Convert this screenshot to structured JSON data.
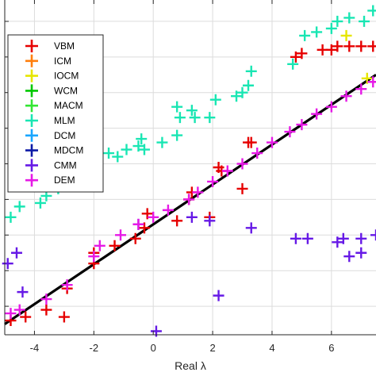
{
  "chart_data": {
    "type": "scatter",
    "title": "",
    "xlabel": "Real λ",
    "ylabel": "",
    "xlim": [
      -5,
      7.5
    ],
    "ylim": [
      -2.8,
      6.6
    ],
    "grid": true,
    "legend_position": "top-left",
    "x_ticks": [
      -4,
      -2,
      0,
      2,
      4,
      6
    ],
    "x_tick_labels": [
      "-4",
      "-2",
      "0",
      "2",
      "4",
      "6"
    ],
    "y_ticks": [
      -2,
      -1,
      0,
      1,
      2,
      3,
      4,
      5,
      6
    ],
    "identity_line": {
      "x": [
        -5,
        7.5
      ],
      "y": [
        -2.5,
        4.5
      ]
    },
    "series": [
      {
        "name": "VBM",
        "color": "#e60000",
        "points": [
          [
            -4.8,
            -2.4
          ],
          [
            -4.3,
            -2.3
          ],
          [
            -3.6,
            -2.1
          ],
          [
            -3.0,
            -2.3
          ],
          [
            -2.9,
            -1.5
          ],
          [
            -2.0,
            -0.8
          ],
          [
            -2.0,
            -0.5
          ],
          [
            -1.3,
            -0.3
          ],
          [
            -0.6,
            -0.1
          ],
          [
            -0.3,
            0.2
          ],
          [
            -0.2,
            0.6
          ],
          [
            0.8,
            0.4
          ],
          [
            1.2,
            1.0
          ],
          [
            1.3,
            1.2
          ],
          [
            1.9,
            0.5
          ],
          [
            2.2,
            1.9
          ],
          [
            2.3,
            1.8
          ],
          [
            3.0,
            1.3
          ],
          [
            3.2,
            2.6
          ],
          [
            3.3,
            2.6
          ],
          [
            4.8,
            5.0
          ],
          [
            5.0,
            5.1
          ],
          [
            5.7,
            5.2
          ],
          [
            6.0,
            5.2
          ],
          [
            6.2,
            5.3
          ],
          [
            6.6,
            5.3
          ],
          [
            7.0,
            5.3
          ],
          [
            7.4,
            5.3
          ]
        ]
      },
      {
        "name": "ICM",
        "color": "#ff7f0e",
        "points": []
      },
      {
        "name": "IOCM",
        "color": "#e6e600",
        "points": [
          [
            6.5,
            5.6
          ],
          [
            7.2,
            4.4
          ]
        ]
      },
      {
        "name": "WCM",
        "color": "#00c800",
        "points": []
      },
      {
        "name": "MACM",
        "color": "#33e633",
        "points": []
      },
      {
        "name": "MLM",
        "color": "#19e6b3",
        "points": [
          [
            -4.8,
            0.5
          ],
          [
            -4.5,
            0.8
          ],
          [
            -3.8,
            0.9
          ],
          [
            -3.6,
            1.1
          ],
          [
            -3.2,
            1.3
          ],
          [
            -2.9,
            1.7
          ],
          [
            -2.9,
            1.9
          ],
          [
            -2.0,
            1.4
          ],
          [
            -1.9,
            1.9
          ],
          [
            -1.5,
            2.3
          ],
          [
            -1.2,
            2.2
          ],
          [
            -0.9,
            2.4
          ],
          [
            -0.5,
            2.5
          ],
          [
            -0.4,
            2.7
          ],
          [
            -0.3,
            2.4
          ],
          [
            0.3,
            2.6
          ],
          [
            0.8,
            2.8
          ],
          [
            0.8,
            3.6
          ],
          [
            0.9,
            3.3
          ],
          [
            1.3,
            3.5
          ],
          [
            1.4,
            3.3
          ],
          [
            1.9,
            3.3
          ],
          [
            2.1,
            3.8
          ],
          [
            2.8,
            3.9
          ],
          [
            3.0,
            4.0
          ],
          [
            3.2,
            4.2
          ],
          [
            3.3,
            4.6
          ],
          [
            4.7,
            4.8
          ],
          [
            5.1,
            5.6
          ],
          [
            5.5,
            5.7
          ],
          [
            6.0,
            5.8
          ],
          [
            6.2,
            6.0
          ],
          [
            6.6,
            6.1
          ],
          [
            7.1,
            6.0
          ],
          [
            7.4,
            6.3
          ]
        ]
      },
      {
        "name": "DCM",
        "color": "#19a6ff",
        "points": []
      },
      {
        "name": "MDCM",
        "color": "#0d1aa6",
        "points": []
      },
      {
        "name": "CMM",
        "color": "#6619e6",
        "points": [
          [
            -4.9,
            -0.8
          ],
          [
            -4.6,
            -0.5
          ],
          [
            -4.4,
            -1.6
          ],
          [
            -0.5,
            0.3
          ],
          [
            0.1,
            -2.7
          ],
          [
            1.3,
            0.5
          ],
          [
            1.9,
            0.4
          ],
          [
            2.2,
            -1.7
          ],
          [
            3.3,
            0.2
          ],
          [
            4.8,
            -0.1
          ],
          [
            5.2,
            -0.1
          ],
          [
            6.2,
            -0.2
          ],
          [
            6.4,
            -0.1
          ],
          [
            6.6,
            -0.6
          ],
          [
            7.0,
            -0.5
          ],
          [
            7.0,
            -0.1
          ],
          [
            7.5,
            0.0
          ]
        ]
      },
      {
        "name": "DEM",
        "color": "#e619e6",
        "points": [
          [
            -4.8,
            -2.2
          ],
          [
            -4.5,
            -2.1
          ],
          [
            -3.6,
            -1.8
          ],
          [
            -2.9,
            -1.4
          ],
          [
            -2.0,
            -0.6
          ],
          [
            -1.8,
            -0.3
          ],
          [
            -1.1,
            0.0
          ],
          [
            -0.5,
            0.3
          ],
          [
            0.0,
            0.5
          ],
          [
            0.5,
            0.7
          ],
          [
            1.2,
            1.0
          ],
          [
            1.5,
            1.2
          ],
          [
            2.0,
            1.5
          ],
          [
            2.5,
            1.8
          ],
          [
            3.0,
            2.0
          ],
          [
            3.5,
            2.3
          ],
          [
            4.0,
            2.6
          ],
          [
            4.6,
            2.9
          ],
          [
            5.0,
            3.1
          ],
          [
            5.5,
            3.4
          ],
          [
            6.0,
            3.6
          ],
          [
            6.5,
            3.9
          ],
          [
            7.0,
            4.1
          ],
          [
            7.4,
            4.3
          ]
        ]
      }
    ]
  }
}
